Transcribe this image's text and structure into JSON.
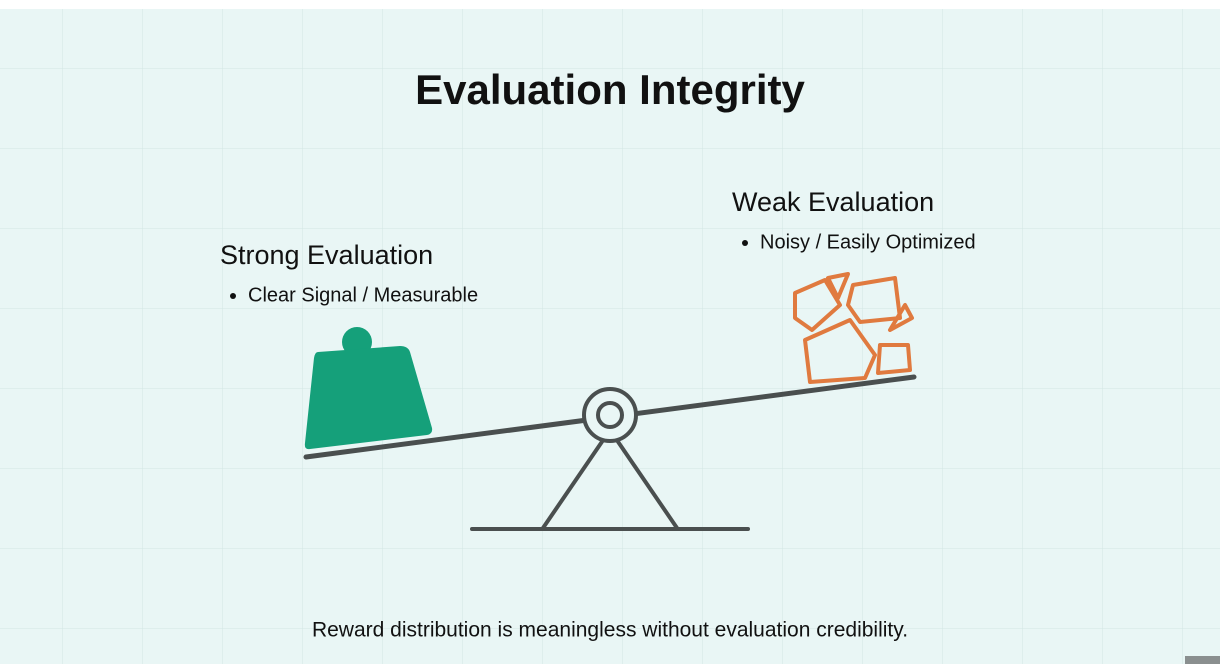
{
  "title": "Evaluation Integrity",
  "left": {
    "heading": "Strong Evaluation",
    "bullet": "Clear Signal / Measurable"
  },
  "right": {
    "heading": "Weak Evaluation",
    "bullet": "Noisy / Easily Optimized"
  },
  "footer": "Reward distribution is meaningless without evaluation credibility."
}
